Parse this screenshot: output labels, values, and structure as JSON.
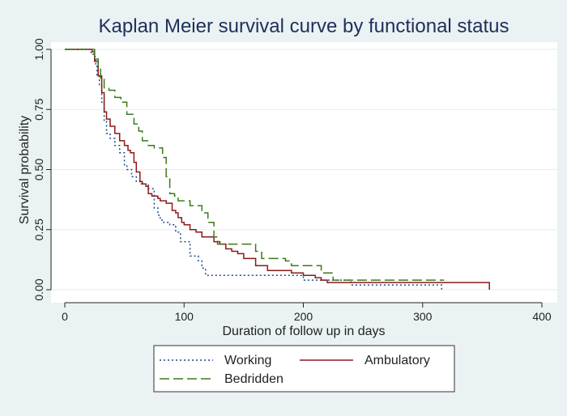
{
  "chart_data": {
    "type": "line",
    "title": "Kaplan Meier survival curve by functional status",
    "xlabel": "Duration of follow up in days",
    "ylabel": "Survival probability",
    "xlim": [
      0,
      400
    ],
    "ylim": [
      0,
      1
    ],
    "xticks": [
      0,
      100,
      200,
      300,
      400
    ],
    "yticks": [
      0,
      0.25,
      0.5,
      0.75,
      1
    ],
    "ytick_labels": [
      "0.00",
      "0.25",
      "0.50",
      "0.75",
      "1.00"
    ],
    "grid": "horizontal",
    "legend_position": "bottom",
    "series": [
      {
        "name": "Working",
        "color": "#1a4a8a",
        "dash": "dotted",
        "x": [
          0,
          18,
          22,
          24,
          26,
          27,
          29,
          31,
          33,
          35,
          38,
          42,
          46,
          50,
          52,
          56,
          60,
          63,
          65,
          70,
          75,
          78,
          80,
          83,
          88,
          93,
          97,
          100,
          105,
          108,
          112,
          115,
          118,
          120,
          190,
          195,
          200,
          205,
          210,
          220,
          230,
          240,
          250,
          260,
          316
        ],
        "y": [
          1.0,
          1.0,
          0.98,
          0.97,
          0.93,
          0.89,
          0.85,
          0.78,
          0.7,
          0.65,
          0.63,
          0.6,
          0.57,
          0.52,
          0.5,
          0.47,
          0.45,
          0.44,
          0.44,
          0.42,
          0.34,
          0.31,
          0.29,
          0.28,
          0.27,
          0.24,
          0.2,
          0.2,
          0.14,
          0.14,
          0.12,
          0.09,
          0.06,
          0.06,
          0.06,
          0.06,
          0.04,
          0.04,
          0.04,
          0.04,
          0.04,
          0.02,
          0.02,
          0.02,
          0.0
        ]
      },
      {
        "name": "Ambulatory",
        "color": "#8b1a1a",
        "dash": "solid",
        "x": [
          0,
          20,
          23,
          25,
          28,
          31,
          33,
          35,
          38,
          42,
          46,
          50,
          53,
          55,
          58,
          60,
          63,
          65,
          68,
          70,
          73,
          75,
          78,
          80,
          85,
          90,
          93,
          95,
          98,
          100,
          105,
          110,
          115,
          120,
          125,
          130,
          135,
          140,
          145,
          150,
          160,
          170,
          190,
          200,
          210,
          215,
          220,
          250,
          300,
          356
        ],
        "y": [
          1.0,
          1.0,
          0.99,
          0.95,
          0.89,
          0.82,
          0.74,
          0.71,
          0.68,
          0.65,
          0.62,
          0.6,
          0.58,
          0.57,
          0.53,
          0.49,
          0.45,
          0.44,
          0.43,
          0.4,
          0.39,
          0.39,
          0.38,
          0.37,
          0.36,
          0.33,
          0.32,
          0.3,
          0.28,
          0.27,
          0.25,
          0.24,
          0.22,
          0.22,
          0.2,
          0.19,
          0.17,
          0.16,
          0.15,
          0.13,
          0.1,
          0.08,
          0.07,
          0.06,
          0.05,
          0.04,
          0.03,
          0.03,
          0.03,
          0.0
        ]
      },
      {
        "name": "Bedridden",
        "color": "#3a7a1a",
        "dash": "dashed",
        "x": [
          0,
          22,
          25,
          28,
          30,
          33,
          37,
          42,
          47,
          52,
          58,
          62,
          65,
          70,
          75,
          82,
          85,
          88,
          92,
          95,
          105,
          115,
          120,
          125,
          128,
          145,
          160,
          165,
          185,
          190,
          215,
          225,
          232,
          318
        ],
        "y": [
          1.0,
          1.0,
          0.96,
          0.92,
          0.88,
          0.84,
          0.83,
          0.8,
          0.78,
          0.73,
          0.69,
          0.66,
          0.62,
          0.6,
          0.59,
          0.55,
          0.47,
          0.4,
          0.39,
          0.37,
          0.35,
          0.32,
          0.28,
          0.22,
          0.19,
          0.19,
          0.16,
          0.13,
          0.12,
          0.1,
          0.07,
          0.04,
          0.04,
          0.04
        ]
      }
    ]
  }
}
